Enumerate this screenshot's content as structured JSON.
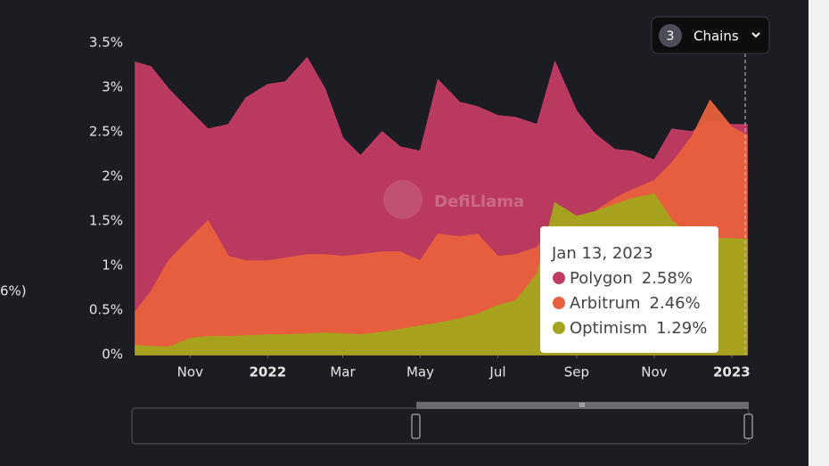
{
  "chart_data": {
    "type": "area",
    "x": [
      "2021-09-19",
      "2021-10-01",
      "2021-10-15",
      "2021-11-01",
      "2021-11-15",
      "2021-12-01",
      "2021-12-15",
      "2022-01-01",
      "2022-01-15",
      "2022-02-01",
      "2022-02-15",
      "2022-03-01",
      "2022-03-15",
      "2022-04-01",
      "2022-04-15",
      "2022-05-01",
      "2022-05-15",
      "2022-06-01",
      "2022-06-15",
      "2022-07-01",
      "2022-07-15",
      "2022-08-01",
      "2022-08-15",
      "2022-09-01",
      "2022-09-15",
      "2022-10-01",
      "2022-10-15",
      "2022-11-01",
      "2022-11-15",
      "2022-12-01",
      "2022-12-15",
      "2023-01-01",
      "2023-01-13"
    ],
    "series": [
      {
        "name": "Polygon",
        "color": "#c23b63",
        "values": [
          3.28,
          3.23,
          2.98,
          2.73,
          2.53,
          2.58,
          2.88,
          3.03,
          3.06,
          3.33,
          2.98,
          2.43,
          2.23,
          2.5,
          2.33,
          2.28,
          3.08,
          2.83,
          2.78,
          2.68,
          2.66,
          2.58,
          3.28,
          2.73,
          2.48,
          2.3,
          2.28,
          2.18,
          2.53,
          2.5,
          2.63,
          2.58,
          2.58
        ]
      },
      {
        "name": "Arbitrum",
        "color": "#e8603c",
        "values": [
          0.48,
          0.7,
          1.05,
          1.3,
          1.5,
          1.1,
          1.05,
          1.05,
          1.08,
          1.12,
          1.12,
          1.1,
          1.12,
          1.15,
          1.15,
          1.05,
          1.35,
          1.32,
          1.35,
          1.1,
          1.12,
          1.2,
          1.45,
          1.55,
          1.6,
          1.75,
          1.85,
          1.95,
          2.15,
          2.45,
          2.85,
          2.55,
          2.46
        ]
      },
      {
        "name": "Optimism",
        "color": "#a3a51b",
        "values": [
          0.1,
          0.09,
          0.08,
          0.18,
          0.2,
          0.2,
          0.21,
          0.22,
          0.22,
          0.23,
          0.24,
          0.23,
          0.22,
          0.25,
          0.28,
          0.32,
          0.35,
          0.4,
          0.45,
          0.55,
          0.6,
          0.9,
          1.7,
          1.55,
          1.6,
          1.68,
          1.75,
          1.8,
          1.5,
          1.3,
          1.3,
          1.3,
          1.29
        ]
      }
    ],
    "xlim": [
      "2021-09-19",
      "2023-01-13"
    ],
    "xticks": [
      {
        "value": "2021-11-01",
        "label": "Nov"
      },
      {
        "value": "2022-01-01",
        "label": "2022",
        "bold": true
      },
      {
        "value": "2022-03-01",
        "label": "Mar"
      },
      {
        "value": "2022-05-01",
        "label": "May"
      },
      {
        "value": "2022-07-01",
        "label": "Jul"
      },
      {
        "value": "2022-09-01",
        "label": "Sep"
      },
      {
        "value": "2022-11-01",
        "label": "Nov"
      },
      {
        "value": "2023-01-01",
        "label": "2023",
        "bold": true
      }
    ],
    "ylim": [
      0,
      3.5
    ],
    "yticks": [
      {
        "value": 0,
        "label": "0%"
      },
      {
        "value": 0.5,
        "label": "0.5%"
      },
      {
        "value": 1,
        "label": "1%"
      },
      {
        "value": 1.5,
        "label": "1.5%"
      },
      {
        "value": 2,
        "label": "2%"
      },
      {
        "value": 2.5,
        "label": "2.5%"
      },
      {
        "value": 3,
        "label": "3%"
      },
      {
        "value": 3.5,
        "label": "3.5%"
      }
    ],
    "tooltip": {
      "date": "Jan 13, 2023",
      "value_labels": [
        "2.58%",
        "2.46%",
        "1.29%"
      ]
    }
  },
  "ui": {
    "chain_count": "3",
    "chains_label": "Chains",
    "left_fragment": "6%)",
    "watermark": "DefiLlama"
  }
}
